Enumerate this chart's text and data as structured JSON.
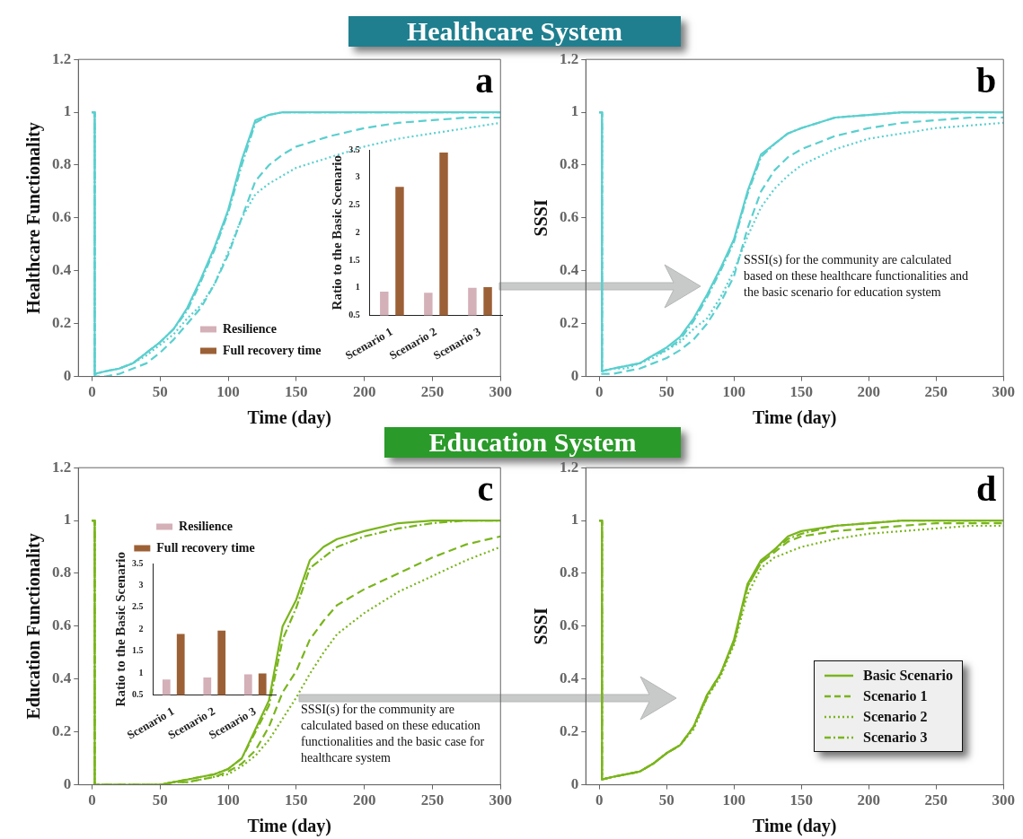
{
  "chart_data": [
    {
      "type": "line",
      "title": "Healthcare System",
      "xlabel": "Time (day)",
      "ylabel": "Healthcare Functionality",
      "annotations": [
        "a"
      ],
      "xlim": [
        -10,
        300
      ],
      "xticks": [
        0,
        50,
        100,
        150,
        200,
        250,
        300
      ],
      "ylim": [
        0,
        1.2
      ],
      "yticks": [
        0,
        0.2,
        0.4,
        0.6,
        0.8,
        1,
        1.2
      ],
      "grid": false,
      "legend": false,
      "x": [
        0,
        2,
        2,
        10,
        20,
        30,
        40,
        50,
        60,
        70,
        80,
        90,
        100,
        110,
        120,
        130,
        140,
        150,
        175,
        200,
        225,
        250,
        275,
        300
      ],
      "series": [
        {
          "color": "#5bcfcf",
          "line_style": "solid",
          "values": [
            1,
            1,
            0.01,
            0.02,
            0.03,
            0.05,
            0.09,
            0.13,
            0.18,
            0.26,
            0.37,
            0.49,
            0.63,
            0.82,
            0.97,
            0.99,
            1,
            1,
            1,
            1,
            1,
            1,
            1,
            1
          ]
        },
        {
          "color": "#5bcfcf",
          "line_style": "dashed",
          "values": [
            1,
            1,
            0,
            0,
            0.01,
            0.03,
            0.05,
            0.09,
            0.14,
            0.2,
            0.26,
            0.35,
            0.46,
            0.6,
            0.74,
            0.8,
            0.84,
            0.87,
            0.91,
            0.94,
            0.96,
            0.97,
            0.98,
            0.98
          ]
        },
        {
          "color": "#5bcfcf",
          "line_style": "dotted",
          "values": [
            1,
            1,
            0.01,
            0.02,
            0.03,
            0.05,
            0.08,
            0.12,
            0.16,
            0.22,
            0.27,
            0.35,
            0.47,
            0.6,
            0.69,
            0.73,
            0.76,
            0.79,
            0.83,
            0.87,
            0.9,
            0.92,
            0.94,
            0.96
          ]
        },
        {
          "color": "#5bcfcf",
          "line_style": "dashdot",
          "values": [
            1,
            1,
            0.01,
            0.02,
            0.03,
            0.05,
            0.09,
            0.13,
            0.18,
            0.25,
            0.36,
            0.48,
            0.62,
            0.8,
            0.96,
            0.99,
            1,
            1,
            1,
            1,
            1,
            1,
            1,
            1
          ]
        }
      ]
    },
    {
      "type": "bar",
      "ylabel": "Ratio to the Basic Scenario",
      "categories": [
        "Scenario 1",
        "Scenario 2",
        "Scenario 3"
      ],
      "ylim": [
        0.5,
        3.5
      ],
      "yticks": [
        0.5,
        1,
        1.5,
        2,
        2.5,
        3,
        3.5
      ],
      "legend": "bottom left",
      "series": [
        {
          "name": "Resilience",
          "color": "#d4b0b8",
          "values": [
            0.93,
            0.91,
            1.0
          ]
        },
        {
          "name": "Full recovery time",
          "color": "#9c6036",
          "values": [
            2.83,
            3.45,
            1.01
          ]
        }
      ]
    },
    {
      "type": "line",
      "xlabel": "Time (day)",
      "ylabel": "SSSI",
      "annotations": [
        "b",
        "SSSI(s) for the community are calculated based on these healthcare functionalities and the basic scenario for education system"
      ],
      "xlim": [
        -10,
        300
      ],
      "xticks": [
        0,
        50,
        100,
        150,
        200,
        250,
        300
      ],
      "ylim": [
        0,
        1.2
      ],
      "yticks": [
        0,
        0.2,
        0.4,
        0.6,
        0.8,
        1,
        1.2
      ],
      "grid": false,
      "legend": false,
      "x": [
        0,
        2,
        2,
        10,
        20,
        30,
        40,
        50,
        60,
        70,
        80,
        90,
        100,
        110,
        120,
        130,
        140,
        150,
        175,
        200,
        225,
        250,
        275,
        300
      ],
      "series": [
        {
          "color": "#5bcfcf",
          "line_style": "solid",
          "values": [
            1,
            1,
            0.02,
            0.03,
            0.04,
            0.05,
            0.08,
            0.11,
            0.15,
            0.22,
            0.31,
            0.41,
            0.52,
            0.7,
            0.84,
            0.88,
            0.92,
            0.94,
            0.98,
            0.99,
            1,
            1,
            1,
            1
          ]
        },
        {
          "color": "#5bcfcf",
          "line_style": "dashed",
          "values": [
            1,
            1,
            0.01,
            0.01,
            0.02,
            0.03,
            0.05,
            0.07,
            0.1,
            0.14,
            0.2,
            0.28,
            0.38,
            0.56,
            0.7,
            0.78,
            0.83,
            0.86,
            0.91,
            0.94,
            0.96,
            0.97,
            0.98,
            0.98
          ]
        },
        {
          "color": "#5bcfcf",
          "line_style": "dotted",
          "values": [
            1,
            1,
            0.02,
            0.03,
            0.03,
            0.05,
            0.07,
            0.1,
            0.13,
            0.18,
            0.22,
            0.3,
            0.4,
            0.53,
            0.64,
            0.71,
            0.76,
            0.8,
            0.86,
            0.9,
            0.92,
            0.94,
            0.95,
            0.96
          ]
        },
        {
          "color": "#5bcfcf",
          "line_style": "dashdot",
          "values": [
            1,
            1,
            0.02,
            0.03,
            0.04,
            0.05,
            0.08,
            0.1,
            0.14,
            0.21,
            0.3,
            0.4,
            0.51,
            0.69,
            0.83,
            0.88,
            0.92,
            0.94,
            0.98,
            0.99,
            1,
            1,
            1,
            1
          ]
        }
      ]
    },
    {
      "type": "line",
      "title": "Education System",
      "xlabel": "Time (day)",
      "ylabel": "Education Functionality",
      "annotations": [
        "c",
        "SSSI(s) for the community are calculated based on these education functionalities and the basic case for healthcare system"
      ],
      "xlim": [
        -10,
        300
      ],
      "xticks": [
        0,
        50,
        100,
        150,
        200,
        250,
        300
      ],
      "ylim": [
        0,
        1.2
      ],
      "yticks": [
        0,
        0.2,
        0.4,
        0.6,
        0.8,
        1,
        1.2
      ],
      "grid": false,
      "legend": false,
      "x": [
        0,
        2,
        2,
        10,
        20,
        30,
        40,
        50,
        60,
        70,
        80,
        90,
        100,
        110,
        120,
        130,
        140,
        150,
        160,
        170,
        180,
        200,
        225,
        250,
        275,
        300
      ],
      "series": [
        {
          "color": "#7ab51d",
          "line_style": "solid",
          "values": [
            1,
            1,
            0,
            0,
            0,
            0,
            0,
            0,
            0.01,
            0.02,
            0.03,
            0.04,
            0.06,
            0.1,
            0.21,
            0.32,
            0.6,
            0.7,
            0.85,
            0.9,
            0.93,
            0.96,
            0.99,
            1,
            1,
            1
          ]
        },
        {
          "color": "#7ab51d",
          "line_style": "dashed",
          "values": [
            1,
            1,
            0,
            0,
            0,
            0,
            0,
            0,
            0.01,
            0.01,
            0.02,
            0.03,
            0.05,
            0.08,
            0.13,
            0.22,
            0.35,
            0.43,
            0.55,
            0.62,
            0.68,
            0.74,
            0.8,
            0.86,
            0.91,
            0.94
          ]
        },
        {
          "color": "#7ab51d",
          "line_style": "dotted",
          "values": [
            1,
            1,
            0,
            0,
            0,
            0,
            0,
            0,
            0.01,
            0.01,
            0.02,
            0.03,
            0.04,
            0.07,
            0.11,
            0.17,
            0.25,
            0.33,
            0.42,
            0.5,
            0.57,
            0.65,
            0.73,
            0.79,
            0.85,
            0.9
          ]
        },
        {
          "color": "#7ab51d",
          "line_style": "dashdot",
          "values": [
            1,
            1,
            0,
            0,
            0,
            0,
            0,
            0,
            0.01,
            0.02,
            0.03,
            0.04,
            0.06,
            0.1,
            0.2,
            0.3,
            0.55,
            0.67,
            0.82,
            0.86,
            0.9,
            0.94,
            0.97,
            0.99,
            1,
            1
          ]
        }
      ]
    },
    {
      "type": "bar",
      "ylabel": "Ratio to the Basic Scenario",
      "categories": [
        "Scenario 1",
        "Scenario 2",
        "Scenario 3"
      ],
      "ylim": [
        0.5,
        3.5
      ],
      "yticks": [
        0.5,
        1,
        1.5,
        2,
        2.5,
        3,
        3.5
      ],
      "legend": "top",
      "series": [
        {
          "name": "Resilience",
          "color": "#d4b0b8",
          "values": [
            0.85,
            0.9,
            0.97
          ]
        },
        {
          "name": "Full recovery time",
          "color": "#9c6036",
          "values": [
            1.89,
            1.97,
            0.99
          ]
        }
      ]
    },
    {
      "type": "line",
      "xlabel": "Time (day)",
      "ylabel": "SSSI",
      "annotations": [
        "d"
      ],
      "xlim": [
        -10,
        300
      ],
      "xticks": [
        0,
        50,
        100,
        150,
        200,
        250,
        300
      ],
      "ylim": [
        0,
        1.2
      ],
      "yticks": [
        0,
        0.2,
        0.4,
        0.6,
        0.8,
        1,
        1.2
      ],
      "grid": false,
      "legend": "bottom right",
      "x": [
        0,
        2,
        2,
        10,
        20,
        30,
        40,
        50,
        60,
        70,
        80,
        90,
        100,
        110,
        120,
        130,
        140,
        150,
        175,
        200,
        225,
        250,
        275,
        300
      ],
      "series": [
        {
          "name": "Basic Scenario",
          "color": "#7ab51d",
          "line_style": "solid",
          "values": [
            1,
            1,
            0.02,
            0.03,
            0.04,
            0.05,
            0.08,
            0.12,
            0.15,
            0.22,
            0.34,
            0.42,
            0.55,
            0.76,
            0.85,
            0.89,
            0.94,
            0.96,
            0.98,
            0.99,
            1,
            1,
            1,
            1
          ]
        },
        {
          "name": "Scenario 1",
          "color": "#7ab51d",
          "line_style": "dashed",
          "values": [
            1,
            1,
            0.02,
            0.03,
            0.04,
            0.05,
            0.08,
            0.12,
            0.15,
            0.22,
            0.34,
            0.42,
            0.54,
            0.75,
            0.84,
            0.88,
            0.92,
            0.94,
            0.96,
            0.97,
            0.98,
            0.99,
            0.99,
            0.99
          ]
        },
        {
          "name": "Scenario 2",
          "color": "#7ab51d",
          "line_style": "dotted",
          "values": [
            1,
            1,
            0.02,
            0.03,
            0.04,
            0.05,
            0.08,
            0.12,
            0.15,
            0.21,
            0.33,
            0.41,
            0.53,
            0.72,
            0.82,
            0.86,
            0.88,
            0.9,
            0.93,
            0.95,
            0.96,
            0.97,
            0.98,
            0.98
          ]
        },
        {
          "name": "Scenario 3",
          "color": "#7ab51d",
          "line_style": "dashdot",
          "values": [
            1,
            1,
            0.02,
            0.03,
            0.04,
            0.05,
            0.08,
            0.12,
            0.15,
            0.22,
            0.33,
            0.42,
            0.54,
            0.75,
            0.84,
            0.89,
            0.93,
            0.95,
            0.98,
            0.99,
            1,
            1,
            1,
            1
          ]
        }
      ]
    }
  ]
}
